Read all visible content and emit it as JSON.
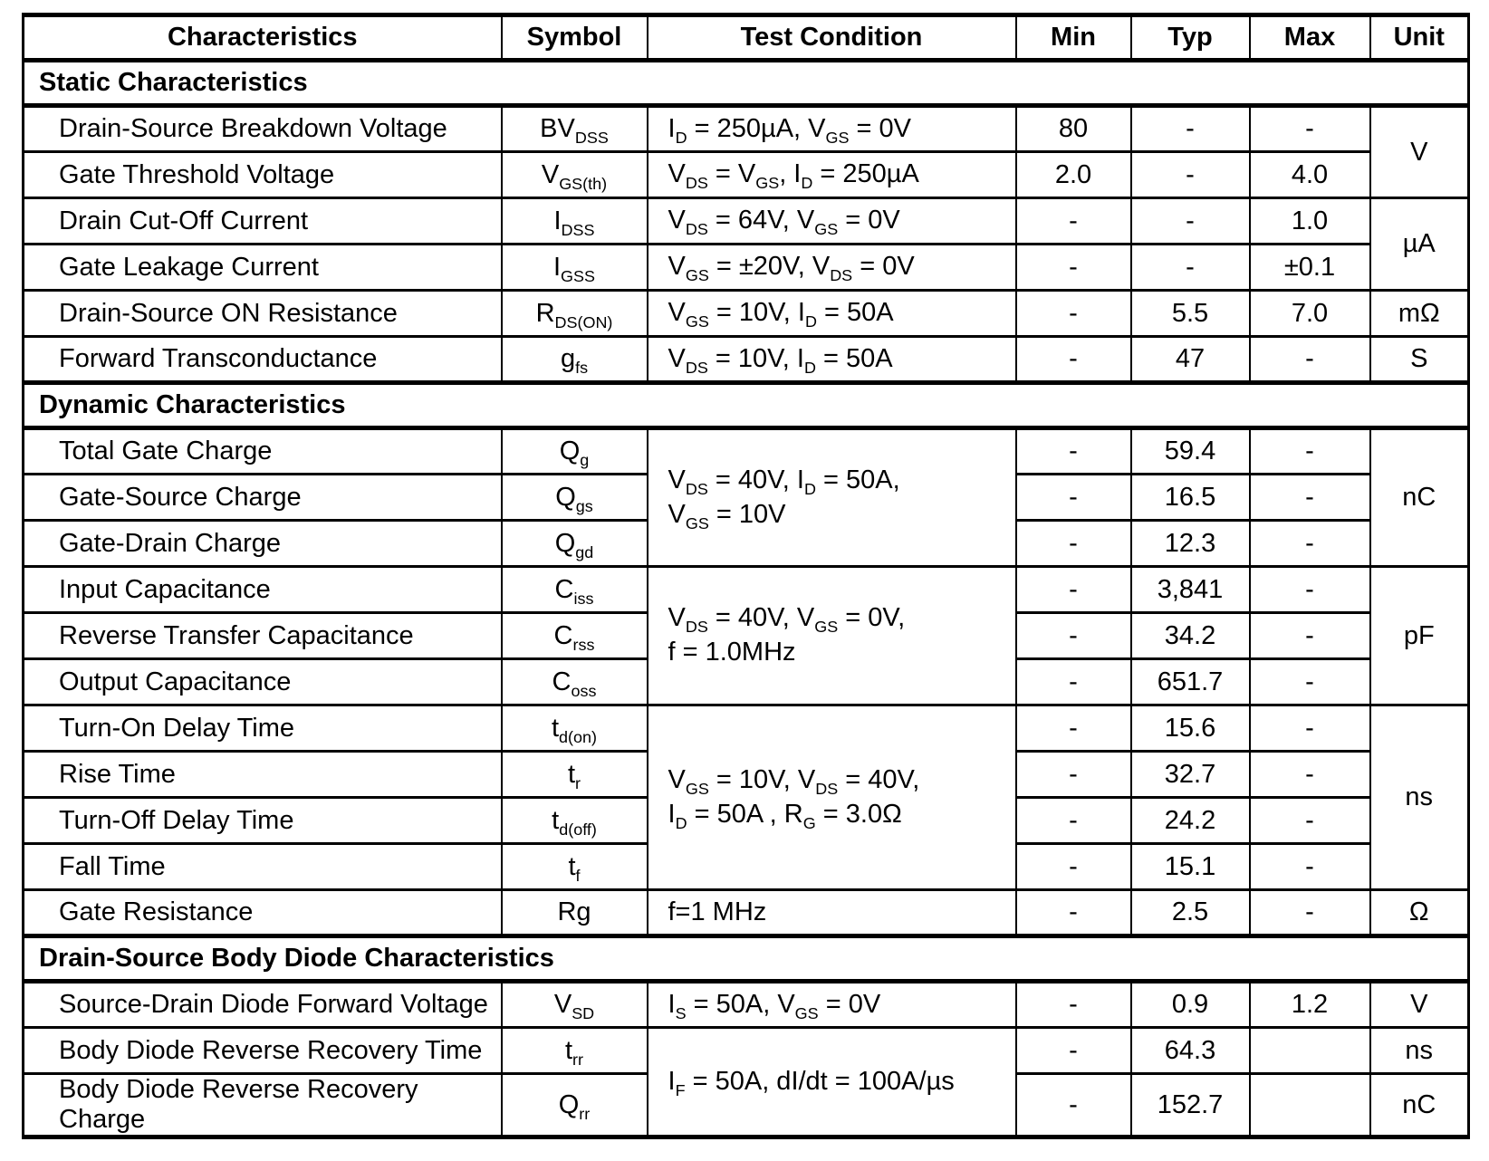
{
  "page": {
    "background_color": "#ffffff",
    "text_color": "#000000",
    "border_color": "#000000"
  },
  "table": {
    "columns": [
      "Characteristics",
      "Symbol",
      "Test Condition",
      "Min",
      "Typ",
      "Max",
      "Unit"
    ],
    "sections": [
      {
        "title": "Static Characteristics",
        "rows": [
          {
            "characteristic": "Drain-Source Breakdown Voltage",
            "symbol": "BV~DSS~",
            "test_condition": "I~D~ = 250µA, V~GS~ = 0V",
            "min": "80",
            "typ": "-",
            "max": "-",
            "unit": "V"
          },
          {
            "characteristic": "Gate Threshold Voltage",
            "symbol": "V~GS(th)~",
            "test_condition": "V~DS~ = V~GS~, I~D~ = 250µA",
            "min": "2.0",
            "typ": "-",
            "max": "4.0"
          },
          {
            "characteristic": "Drain Cut-Off Current",
            "symbol": "I~DSS~",
            "test_condition": "V~DS~ = 64V, V~GS~ = 0V",
            "min": "-",
            "typ": "-",
            "max": "1.0",
            "unit": "µA"
          },
          {
            "characteristic": "Gate Leakage Current",
            "symbol": "I~GSS~",
            "test_condition": "V~GS~ = ±20V, V~DS~ = 0V",
            "min": "-",
            "typ": "-",
            "max": "±0.1"
          },
          {
            "characteristic": "Drain-Source ON Resistance",
            "symbol": "R~DS(ON)~",
            "test_condition": "V~GS~ = 10V, I~D~ = 50A",
            "min": "-",
            "typ": "5.5",
            "max": "7.0",
            "unit": "mΩ"
          },
          {
            "characteristic": "Forward Transconductance",
            "symbol": "g~fs~",
            "test_condition": "V~DS~ = 10V, I~D~ = 50A",
            "min": "-",
            "typ": "47",
            "max": "-",
            "unit": "S"
          }
        ]
      },
      {
        "title": "Dynamic Characteristics",
        "rows": [
          {
            "characteristic": "Total Gate Charge",
            "symbol": "Q~g~",
            "test_condition": "V~DS~ = 40V, I~D~ = 50A,\nV~GS~ = 10V",
            "min": "-",
            "typ": "59.4",
            "max": "-",
            "unit": "nC"
          },
          {
            "characteristic": "Gate-Source Charge",
            "symbol": "Q~gs~",
            "min": "-",
            "typ": "16.5",
            "max": "-"
          },
          {
            "characteristic": "Gate-Drain Charge",
            "symbol": "Q~gd~",
            "min": "-",
            "typ": "12.3",
            "max": "-"
          },
          {
            "characteristic": "Input Capacitance",
            "symbol": "C~iss~",
            "test_condition": "V~DS~ = 40V, V~GS~ = 0V,\nf = 1.0MHz",
            "min": "-",
            "typ": "3,841",
            "max": "-",
            "unit": "pF"
          },
          {
            "characteristic": "Reverse Transfer Capacitance",
            "symbol": "C~rss~",
            "min": "-",
            "typ": "34.2",
            "max": "-"
          },
          {
            "characteristic": "Output Capacitance",
            "symbol": "C~oss~",
            "min": "-",
            "typ": "651.7",
            "max": "-"
          },
          {
            "characteristic": "Turn-On Delay Time",
            "symbol": "t~d(on)~",
            "test_condition": "V~GS~ = 10V, V~DS~ = 40V,\nI~D~ = 50A , R~G~ = 3.0Ω",
            "min": "-",
            "typ": "15.6",
            "max": "-",
            "unit": "ns"
          },
          {
            "characteristic": "Rise Time",
            "symbol": "t~r~",
            "min": "-",
            "typ": "32.7",
            "max": "-"
          },
          {
            "characteristic": "Turn-Off Delay Time",
            "symbol": "t~d(off)~",
            "min": "-",
            "typ": "24.2",
            "max": "-"
          },
          {
            "characteristic": "Fall Time",
            "symbol": "t~f~",
            "min": "-",
            "typ": "15.1",
            "max": "-"
          },
          {
            "characteristic": "Gate Resistance",
            "symbol": "Rg",
            "test_condition": "f=1 MHz",
            "min": "-",
            "typ": "2.5",
            "max": "-",
            "unit": "Ω"
          }
        ]
      },
      {
        "title": "Drain-Source Body Diode Characteristics",
        "rows": [
          {
            "characteristic": "Source-Drain Diode Forward Voltage",
            "symbol": "V~SD~",
            "test_condition": "I~S~ = 50A, V~GS~ = 0V",
            "min": "-",
            "typ": "0.9",
            "max": "1.2",
            "unit": "V"
          },
          {
            "characteristic": "Body Diode Reverse Recovery Time",
            "symbol": "t~rr~",
            "test_condition": "I~F~ = 50A, dI/dt = 100A/µs",
            "min": "-",
            "typ": "64.3",
            "max": "",
            "unit": "ns"
          },
          {
            "characteristic": "Body Diode Reverse Recovery Charge",
            "symbol": "Q~rr~",
            "min": "-",
            "typ": "152.7",
            "max": "",
            "unit": "nC"
          }
        ]
      }
    ]
  }
}
